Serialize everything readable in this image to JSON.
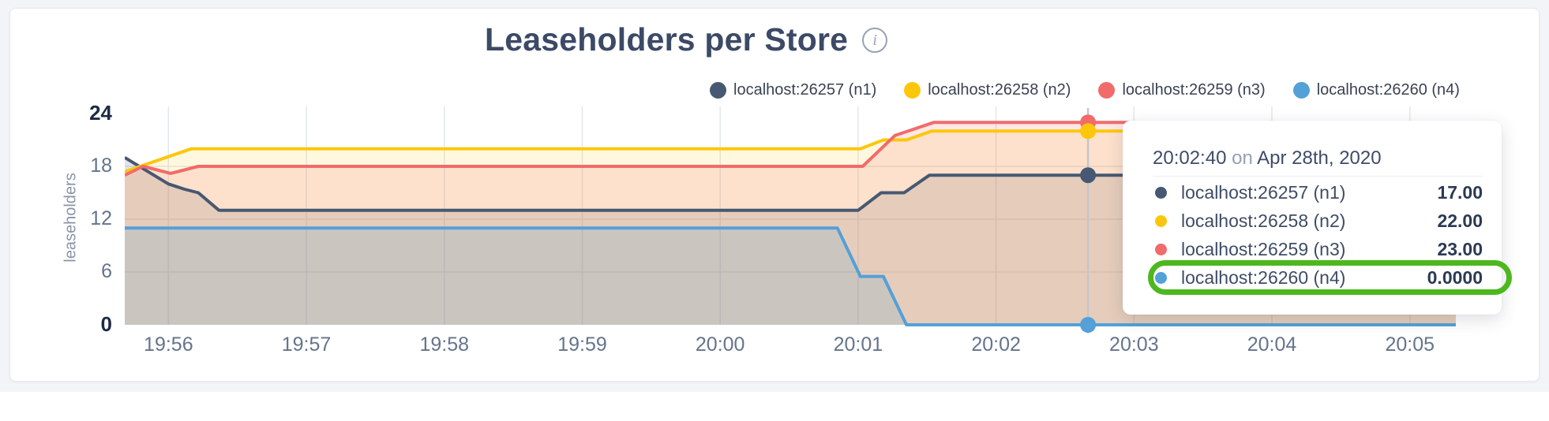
{
  "page": {
    "background": "#f2f4f8",
    "card_background": "#ffffff"
  },
  "header": {
    "title": "Leaseholders per Store",
    "info_glyph": "i"
  },
  "y_axis": {
    "label": "leaseholders",
    "ticks": [
      {
        "label": "24",
        "value": 24,
        "bold": true
      },
      {
        "label": "18",
        "value": 18,
        "bold": false
      },
      {
        "label": "12",
        "value": 12,
        "bold": false
      },
      {
        "label": "6",
        "value": 6,
        "bold": false
      },
      {
        "label": "0",
        "value": 0,
        "bold": true
      }
    ]
  },
  "chart_data": {
    "type": "area",
    "title": "Leaseholders per Store",
    "xlabel": "",
    "ylabel": "leaseholders",
    "ylim": [
      0,
      24
    ],
    "y_ticks": [
      0,
      6,
      12,
      18,
      24
    ],
    "x_domain": [
      "19:55:41",
      "20:05:20"
    ],
    "x_ticks": [
      "19:56",
      "19:57",
      "19:58",
      "19:59",
      "20:00",
      "20:01",
      "20:02",
      "20:03",
      "20:04",
      "20:05"
    ],
    "grid": true,
    "legend_position": "top-right",
    "series": [
      {
        "name": "localhost:26257 (n1)",
        "color": "#475872",
        "fill": "rgba(71,88,114,0.16)",
        "points": [
          [
            "19:55:41",
            19
          ],
          [
            "19:56:00",
            16
          ],
          [
            "19:56:07",
            15.4
          ],
          [
            "19:56:13",
            15
          ],
          [
            "19:56:22",
            13
          ],
          [
            "20:01:00",
            13
          ],
          [
            "20:01:10",
            15
          ],
          [
            "20:01:20",
            15
          ],
          [
            "20:01:31",
            17
          ],
          [
            "20:05:20",
            17
          ]
        ]
      },
      {
        "name": "localhost:26258 (n2)",
        "color": "#fcc70b",
        "fill": "rgba(252,199,11,0.13)",
        "points": [
          [
            "19:55:41",
            17.4
          ],
          [
            "19:56:10",
            20
          ],
          [
            "20:01:01",
            20
          ],
          [
            "20:01:11",
            21
          ],
          [
            "20:01:21",
            21
          ],
          [
            "20:01:32",
            22
          ],
          [
            "20:05:20",
            22
          ]
        ]
      },
      {
        "name": "localhost:26259 (n3)",
        "color": "#f16b6b",
        "fill": "rgba(241,107,107,0.16)",
        "points": [
          [
            "19:55:41",
            17
          ],
          [
            "19:55:49",
            18
          ],
          [
            "19:56:01",
            17.2
          ],
          [
            "19:56:13",
            18
          ],
          [
            "20:01:02",
            18
          ],
          [
            "20:01:16",
            21.5
          ],
          [
            "20:01:33",
            23
          ],
          [
            "20:05:20",
            23
          ]
        ]
      },
      {
        "name": "localhost:26260 (n4)",
        "color": "#54a0d8",
        "fill": "rgba(84,160,216,0.18)",
        "points": [
          [
            "19:55:41",
            11
          ],
          [
            "20:00:51",
            11
          ],
          [
            "20:01:01",
            5.5
          ],
          [
            "20:01:11",
            5.5
          ],
          [
            "20:01:21",
            0
          ],
          [
            "20:05:20",
            0
          ]
        ]
      }
    ]
  },
  "hover": {
    "time": "20:02:40",
    "values": [
      17,
      22,
      23,
      0
    ],
    "line_color": "#c2c6ce",
    "dot_radius": 10
  },
  "tooltip": {
    "time": "20:02:40",
    "on": "on",
    "date": "Apr 28th, 2020",
    "highlight_color": "#4db81e",
    "rows": [
      {
        "label": "localhost:26257 (n1)",
        "value": "17.00",
        "color": "#475872",
        "highlighted": false
      },
      {
        "label": "localhost:26258 (n2)",
        "value": "22.00",
        "color": "#fcc70b",
        "highlighted": false
      },
      {
        "label": "localhost:26259 (n3)",
        "value": "23.00",
        "color": "#f16b6b",
        "highlighted": false
      },
      {
        "label": "localhost:26260 (n4)",
        "value": "0.0000",
        "color": "#54a0d8",
        "highlighted": true
      }
    ]
  }
}
